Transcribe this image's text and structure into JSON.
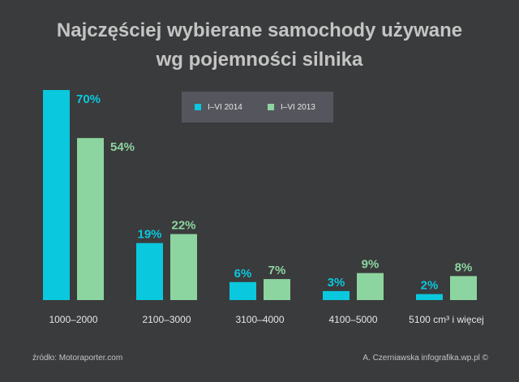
{
  "colors": {
    "background": "#3a3b3c",
    "title": "#c4c4c4",
    "series_2014": "#0ac8de",
    "series_2013": "#8dd5a0",
    "tick_label": "#e6e6e6",
    "legend_bg": "#55565d"
  },
  "chart_data": {
    "type": "bar",
    "title": "Najczęściej wybierane samochody używane wg pojemności silnika",
    "title_lines": [
      "Najczęściej wybierane samochody używane",
      "wg pojemności silnika"
    ],
    "categories": [
      "1000–2000",
      "2100–3000",
      "3100–4000",
      "4100–5000",
      "5100 cm³ i więcej"
    ],
    "series": [
      {
        "name": "I–VI 2014",
        "values": [
          70,
          19,
          6,
          3,
          2
        ],
        "labels": [
          "70%",
          "19%",
          "6%",
          "3%",
          "2%"
        ],
        "color": "#0ac8de"
      },
      {
        "name": "I–VI 2013",
        "values": [
          54,
          22,
          7,
          9,
          8
        ],
        "labels": [
          "54%",
          "22%",
          "7%",
          "9%",
          "8%"
        ],
        "color": "#8dd5a0"
      }
    ],
    "xlabel": "",
    "ylabel": "",
    "ylim": [
      0,
      70
    ],
    "legend_position": "top-center",
    "grid": false
  },
  "footer": {
    "source": "źródło: Motoraporter.com",
    "author": "A. Czerniawska infografika.wp.pl ©"
  }
}
